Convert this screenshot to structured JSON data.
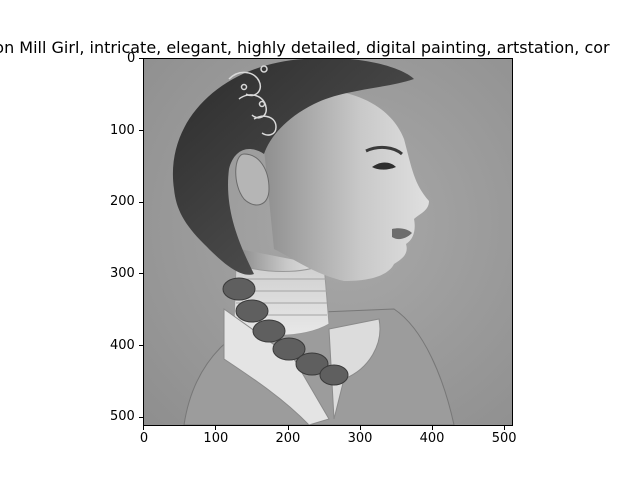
{
  "figure": {
    "title": "ton Mill Girl, intricate, elegant, highly detailed, digital painting, artstation, cor",
    "image_subject": "grayscale portrait of a young woman in profile with braided hair and a lace collar"
  },
  "axes": {
    "x_ticks": [
      "0",
      "100",
      "200",
      "300",
      "400",
      "500"
    ],
    "y_ticks": [
      "0",
      "100",
      "200",
      "300",
      "400",
      "500"
    ],
    "xlim": [
      0,
      512
    ],
    "ylim": [
      512,
      0
    ]
  }
}
